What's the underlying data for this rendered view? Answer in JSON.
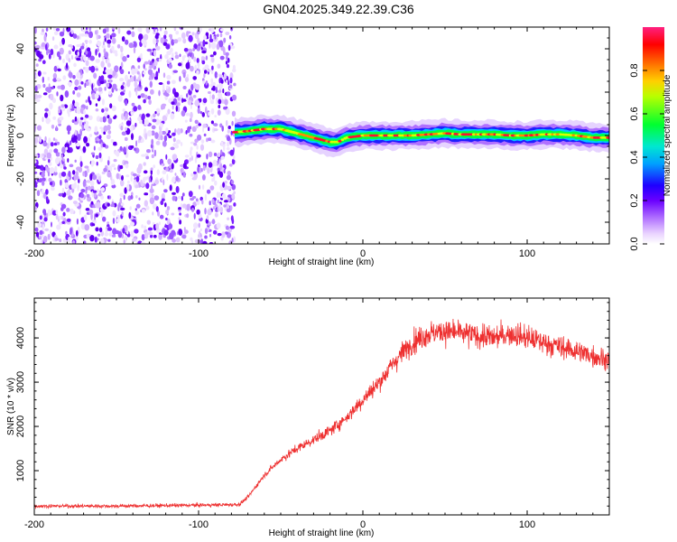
{
  "title": "GN04.2025.349.22.39.C36",
  "chart_data": [
    {
      "type": "heatmap",
      "name": "spectrogram",
      "xlabel": "Height of straight line (km)",
      "ylabel": "Frequency (Hz)",
      "xlim": [
        -200,
        150
      ],
      "ylim": [
        -50,
        50
      ],
      "xticks": [
        -200,
        -100,
        0,
        100
      ],
      "yticks": [
        -40,
        -20,
        0,
        20,
        40
      ],
      "noise_region_x": [
        -200,
        -78
      ],
      "signal_track": {
        "x": [
          -78,
          -70,
          -60,
          -50,
          -45,
          -40,
          -35,
          -30,
          -25,
          -20,
          -15,
          -10,
          0,
          10,
          20,
          30,
          40,
          50,
          60,
          70,
          80,
          90,
          100,
          110,
          120,
          130,
          140,
          150
        ],
        "freq": [
          1.5,
          2,
          3,
          3,
          2,
          1,
          0,
          -1,
          -2,
          -3,
          -3,
          -1,
          0,
          0,
          0,
          0,
          0.5,
          1,
          0.5,
          0.5,
          0.5,
          0,
          0,
          0.5,
          0.5,
          0,
          -1,
          -1
        ]
      },
      "colorbar": {
        "label": "Normalized spectral amplitude",
        "ticks": [
          0.0,
          0.2,
          0.4,
          0.6,
          0.8
        ],
        "tick_labels": [
          "0.0",
          "0.2",
          "0.4",
          "0.6",
          "0.8"
        ],
        "range": [
          0,
          1
        ],
        "colormap": [
          "#ffffff",
          "#d9b3ff",
          "#8a2be2",
          "#1e00ff",
          "#00c8ff",
          "#00ff50",
          "#d8ff00",
          "#ffa000",
          "#ff0040",
          "#ff2080"
        ]
      }
    },
    {
      "type": "line",
      "name": "snr",
      "xlabel": "Height of straight line (km)",
      "ylabel": "SNR (10 * v/v)",
      "xlim": [
        -200,
        150
      ],
      "ylim": [
        0,
        4900
      ],
      "xticks": [
        -200,
        -100,
        0,
        100
      ],
      "yticks": [
        1000,
        2000,
        3000,
        4000
      ],
      "color": "#ee3030",
      "x": [
        -200,
        -150,
        -100,
        -80,
        -75,
        -70,
        -65,
        -60,
        -50,
        -40,
        -30,
        -20,
        -10,
        0,
        10,
        20,
        30,
        40,
        50,
        60,
        70,
        80,
        90,
        100,
        110,
        120,
        130,
        140,
        150
      ],
      "y": [
        200,
        200,
        220,
        230,
        240,
        400,
        650,
        900,
        1250,
        1500,
        1700,
        1900,
        2200,
        2600,
        3000,
        3500,
        3900,
        4100,
        4150,
        4100,
        4050,
        4000,
        4100,
        4000,
        3900,
        3800,
        3700,
        3600,
        3500
      ]
    }
  ]
}
